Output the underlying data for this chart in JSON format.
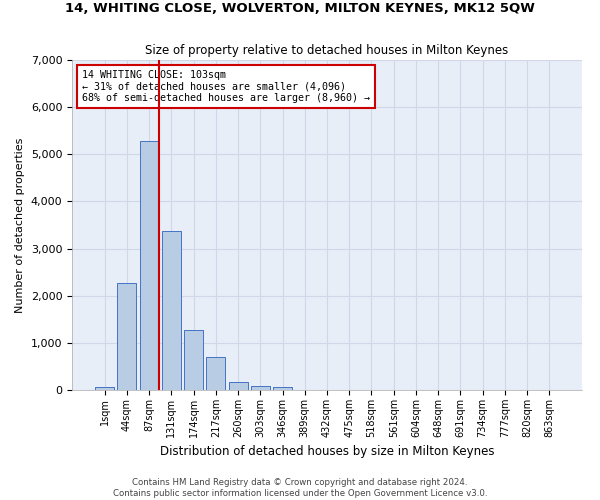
{
  "title": "14, WHITING CLOSE, WOLVERTON, MILTON KEYNES, MK12 5QW",
  "subtitle": "Size of property relative to detached houses in Milton Keynes",
  "xlabel": "Distribution of detached houses by size in Milton Keynes",
  "ylabel": "Number of detached properties",
  "footer_line1": "Contains HM Land Registry data © Crown copyright and database right 2024.",
  "footer_line2": "Contains public sector information licensed under the Open Government Licence v3.0.",
  "bar_labels": [
    "1sqm",
    "44sqm",
    "87sqm",
    "131sqm",
    "174sqm",
    "217sqm",
    "260sqm",
    "303sqm",
    "346sqm",
    "389sqm",
    "432sqm",
    "475sqm",
    "518sqm",
    "561sqm",
    "604sqm",
    "648sqm",
    "691sqm",
    "734sqm",
    "777sqm",
    "820sqm",
    "863sqm"
  ],
  "bar_values": [
    60,
    2270,
    5280,
    3380,
    1270,
    700,
    175,
    95,
    60,
    10,
    5,
    0,
    0,
    0,
    0,
    0,
    0,
    0,
    0,
    0,
    0
  ],
  "bar_color": "#b8cce4",
  "bar_edge_color": "#4472c4",
  "vline_x_index": 2,
  "annotation_text": "14 WHITING CLOSE: 103sqm\n← 31% of detached houses are smaller (4,096)\n68% of semi-detached houses are larger (8,960) →",
  "annotation_box_edge": "#cc0000",
  "vline_color": "#cc0000",
  "grid_color": "#d0d8e8",
  "background_color": "#e8eef8",
  "ylim": [
    0,
    7000
  ],
  "yticks": [
    0,
    1000,
    2000,
    3000,
    4000,
    5000,
    6000,
    7000
  ]
}
